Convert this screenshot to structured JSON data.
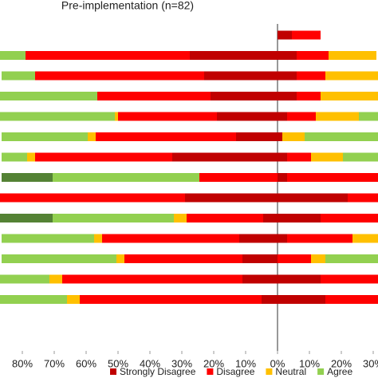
{
  "chart_data": [
    {
      "type": "diverging-bar-left",
      "title": "Pre-implementation (n=82)",
      "categories": [
        null,
        null,
        null,
        null,
        null,
        null,
        null,
        null,
        null,
        null,
        null,
        null,
        null,
        null
      ],
      "xlim": [
        0,
        87
      ],
      "xticks": [
        {
          "value": 10,
          "label": "10%"
        },
        {
          "value": 20,
          "label": "20%"
        },
        {
          "value": 30,
          "label": "30%"
        },
        {
          "value": 40,
          "label": "40%"
        },
        {
          "value": 50,
          "label": "50%"
        },
        {
          "value": 60,
          "label": "60%"
        },
        {
          "value": 70,
          "label": "70%"
        },
        {
          "value": 80,
          "label": "80%"
        }
      ],
      "legend": "bottom",
      "series": [
        {
          "name": "Strongly Disagree",
          "color": "#c00000",
          "values": [
            null,
            27.5,
            23,
            21,
            19,
            13,
            33,
            0,
            29,
            4.5,
            12,
            11,
            11,
            5
          ]
        },
        {
          "name": "Disagree",
          "color": "#ff0000",
          "values": [
            null,
            51.5,
            53,
            35.5,
            31,
            44,
            43,
            24.5,
            58,
            24,
            43,
            37,
            56.5,
            57
          ]
        },
        {
          "name": "Neutral",
          "color": "#ffc000",
          "values": [
            null,
            0,
            0,
            0,
            1,
            2.5,
            2.5,
            0,
            0,
            4,
            2.5,
            2.5,
            4,
            4
          ]
        },
        {
          "name": "Agree",
          "color": "#92d050",
          "values": [
            null,
            8,
            10.5,
            31,
            36,
            27,
            8,
            46,
            0,
            38,
            29,
            36,
            15.5,
            21
          ]
        },
        {
          "color": "#548235",
          "values": [
            null,
            0,
            0,
            0,
            0,
            0,
            0,
            16,
            0,
            17,
            0,
            0,
            0,
            0.5
          ]
        }
      ]
    },
    {
      "type": "diverging-bar-right",
      "xlim": [
        0,
        31.5
      ],
      "xticks": [
        {
          "value": 0,
          "label": "0%"
        },
        {
          "value": 10,
          "label": "10%"
        },
        {
          "value": 20,
          "label": "20%"
        },
        {
          "value": 30,
          "label": "30%"
        }
      ],
      "series": [
        {
          "color": "#c00000",
          "values": [
            4.5,
            6,
            6,
            6,
            3,
            1.5,
            3,
            3,
            22,
            13.5,
            3,
            0,
            13.5,
            15
          ]
        },
        {
          "color": "#ff0000",
          "values": [
            9,
            10,
            9,
            7.5,
            9,
            0,
            7.5,
            28.5,
            9.5,
            18,
            20.5,
            10.5,
            18,
            16.5
          ]
        },
        {
          "color": "#ffc000",
          "values": [
            0,
            15,
            16.5,
            18,
            13.5,
            7,
            10,
            0,
            0,
            0,
            11,
            4.5,
            0,
            0
          ]
        },
        {
          "color": "#92d050",
          "values": [
            0,
            0,
            0,
            0,
            6,
            23,
            11,
            0,
            0,
            0,
            0,
            16.5,
            0,
            0
          ]
        }
      ]
    }
  ]
}
